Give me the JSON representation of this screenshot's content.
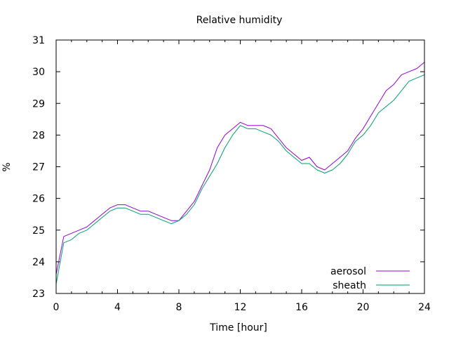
{
  "chart_data": {
    "type": "line",
    "title": "Relative humidity",
    "xlabel": "Time [hour]",
    "ylabel": "%",
    "xlim": [
      0,
      24
    ],
    "ylim": [
      23,
      31
    ],
    "xticks": [
      "0",
      "4",
      "8",
      "12",
      "16",
      "20",
      "24"
    ],
    "yticks": [
      "23",
      "24",
      "25",
      "26",
      "27",
      "28",
      "29",
      "30",
      "31"
    ],
    "grid": false,
    "legend": "bottom-right",
    "x": [
      0,
      0.5,
      1,
      1.5,
      2,
      2.5,
      3,
      3.5,
      4,
      4.5,
      5,
      5.5,
      6,
      6.5,
      7,
      7.5,
      8,
      8.5,
      9,
      9.5,
      10,
      10.5,
      11,
      11.5,
      12,
      12.5,
      13,
      13.5,
      14,
      14.5,
      15,
      15.5,
      16,
      16.5,
      17,
      17.5,
      18,
      18.5,
      19,
      19.5,
      20,
      20.5,
      21,
      21.5,
      22,
      22.5,
      23,
      23.5,
      24
    ],
    "series": [
      {
        "name": "aerosol",
        "color": "#9400d3",
        "values": [
          23.6,
          24.8,
          24.9,
          25.0,
          25.1,
          25.3,
          25.5,
          25.7,
          25.8,
          25.8,
          25.7,
          25.6,
          25.6,
          25.5,
          25.4,
          25.3,
          25.3,
          25.6,
          25.9,
          26.4,
          26.9,
          27.6,
          28.0,
          28.2,
          28.4,
          28.3,
          28.3,
          28.3,
          28.2,
          27.9,
          27.6,
          27.4,
          27.2,
          27.3,
          27.0,
          26.9,
          27.1,
          27.3,
          27.5,
          27.9,
          28.2,
          28.6,
          29.0,
          29.4,
          29.6,
          29.9,
          30.0,
          30.1,
          30.3
        ]
      },
      {
        "name": "sheath",
        "color": "#009e73",
        "values": [
          23.3,
          24.6,
          24.7,
          24.9,
          25.0,
          25.2,
          25.4,
          25.6,
          25.7,
          25.7,
          25.6,
          25.5,
          25.5,
          25.4,
          25.3,
          25.2,
          25.3,
          25.5,
          25.8,
          26.3,
          26.7,
          27.1,
          27.6,
          28.0,
          28.3,
          28.2,
          28.2,
          28.1,
          28.0,
          27.8,
          27.5,
          27.3,
          27.1,
          27.1,
          26.9,
          26.8,
          26.9,
          27.1,
          27.4,
          27.8,
          28.0,
          28.3,
          28.7,
          28.9,
          29.1,
          29.4,
          29.7,
          29.8,
          29.9
        ]
      }
    ]
  }
}
